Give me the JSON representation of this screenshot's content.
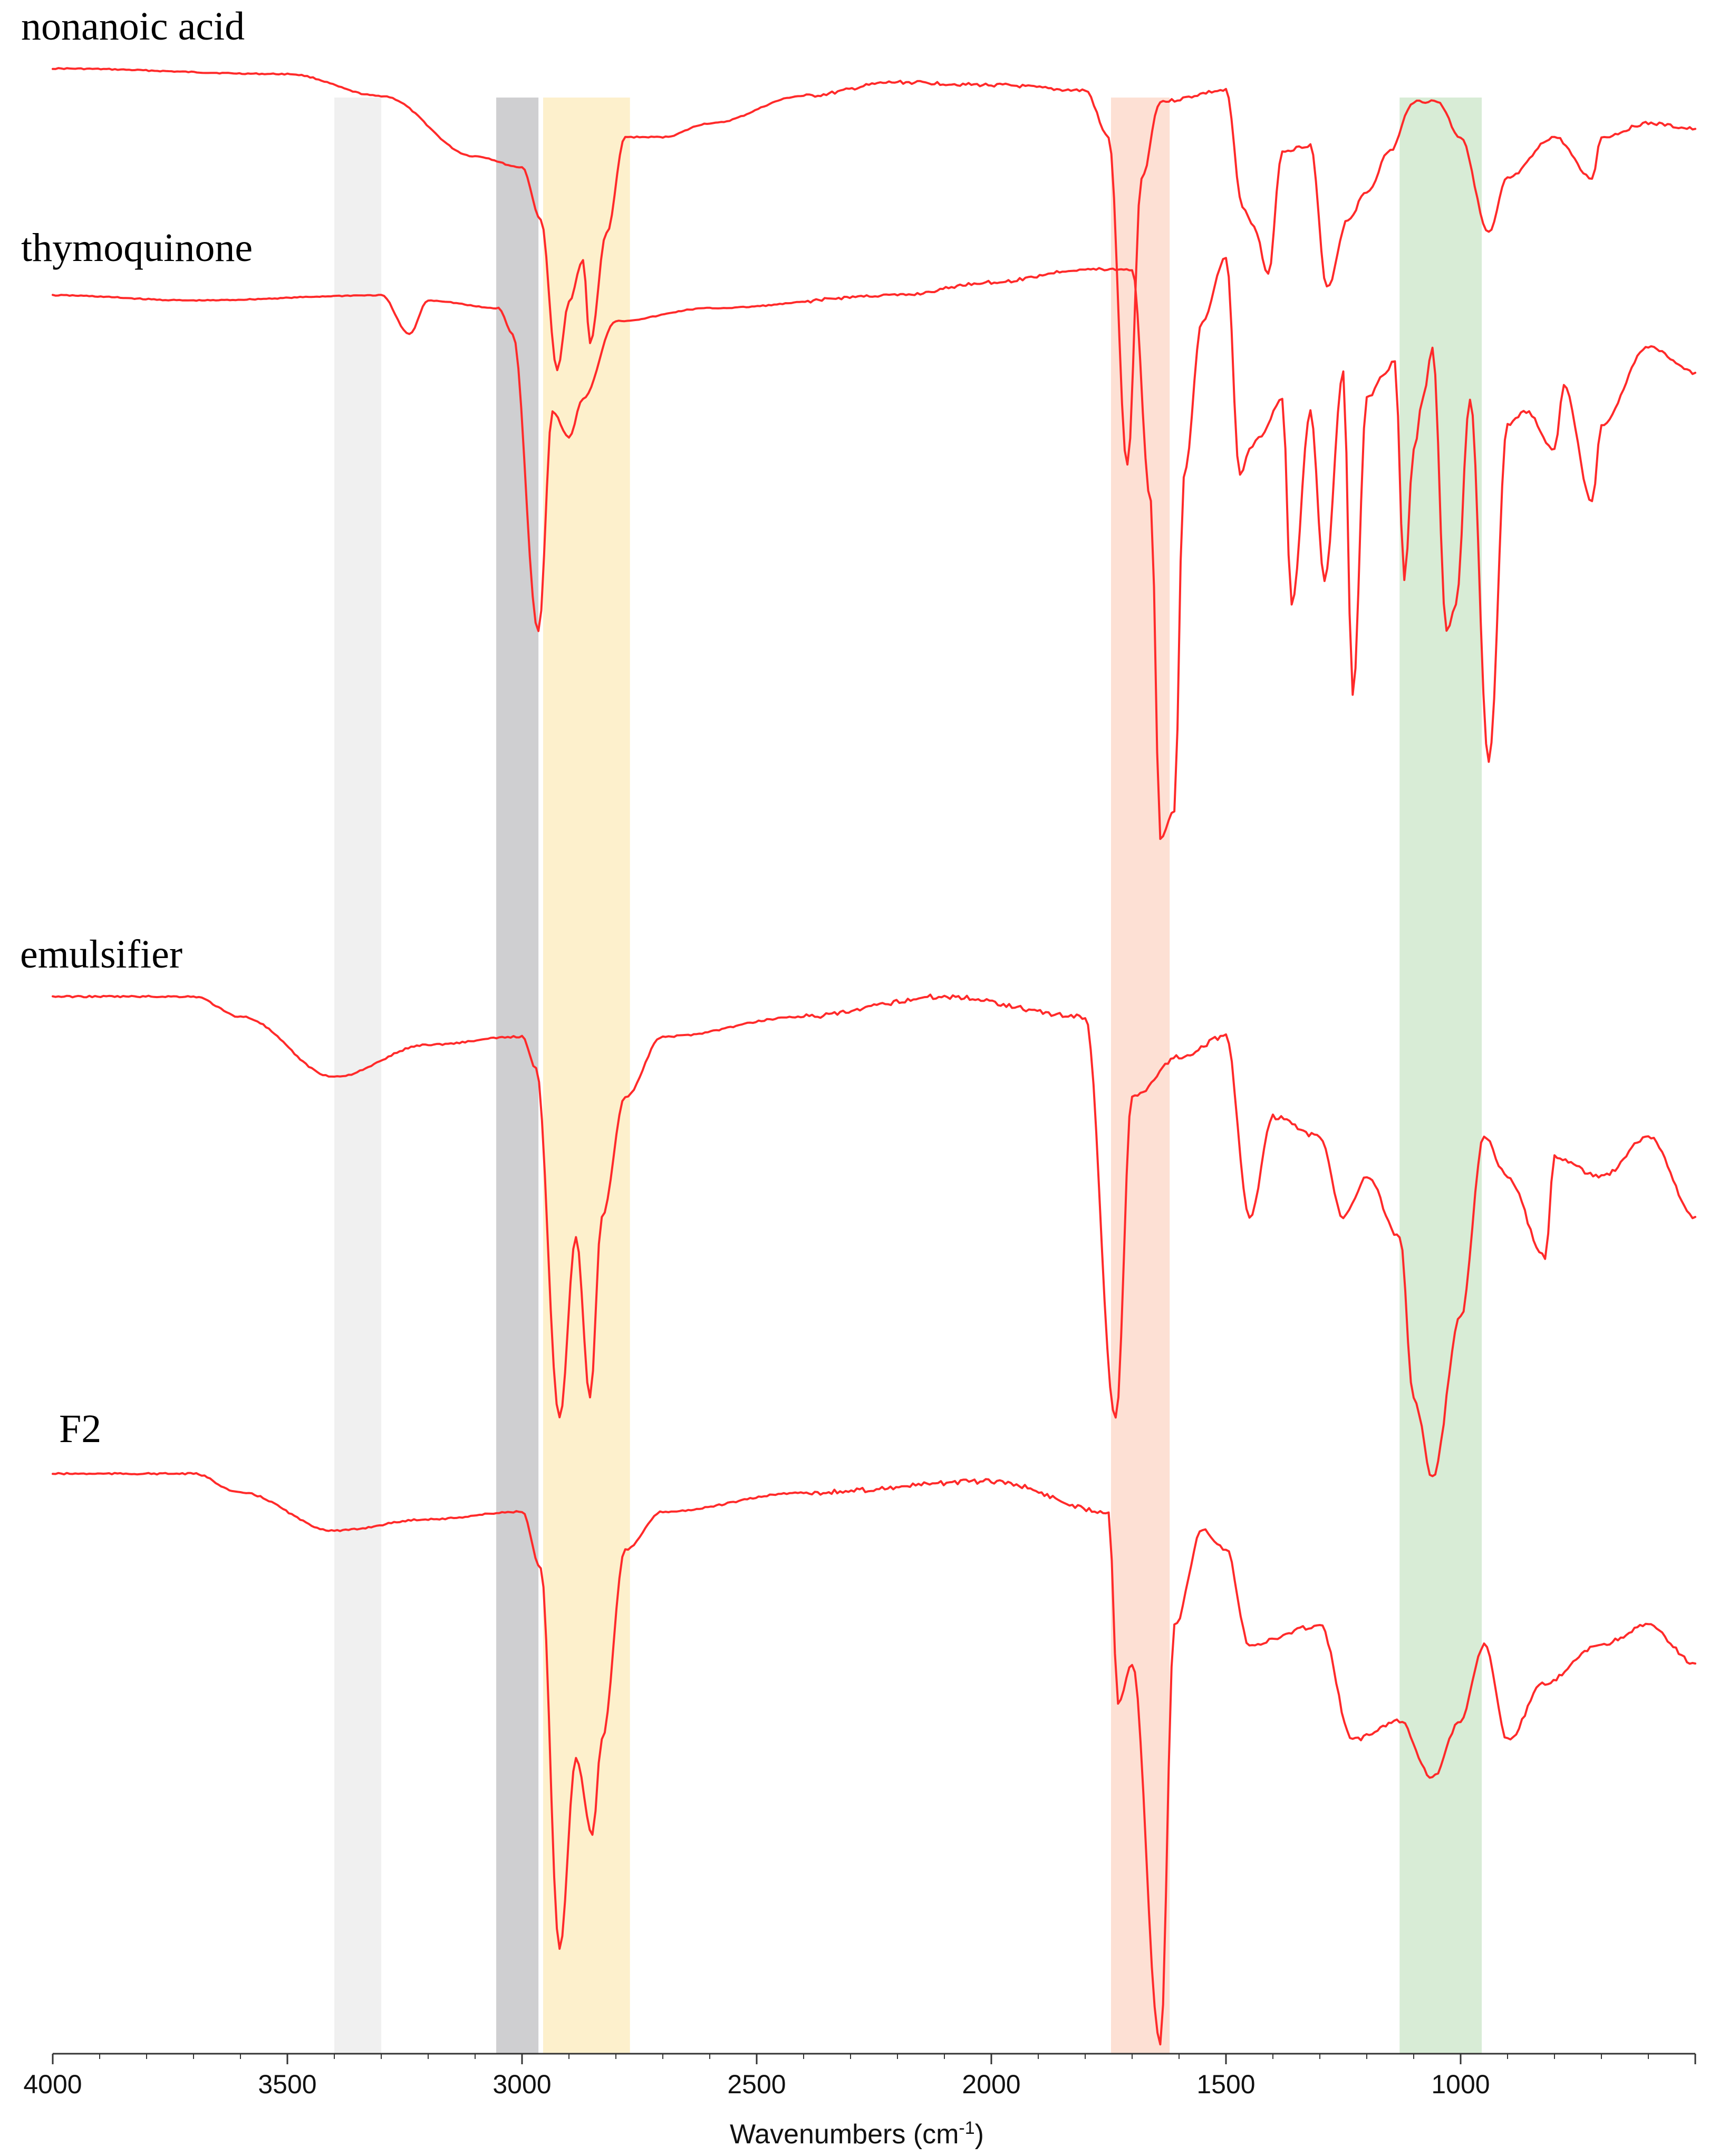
{
  "chart_data": {
    "type": "line",
    "xlabel": "Wavenumbers (cm-1)",
    "xlabel_base": "Wavenumbers (cm",
    "xlabel_sup": "-1",
    "xlabel_tail": ")",
    "xlim": [
      4000,
      500
    ],
    "x_reversed": true,
    "ticks": [
      4000,
      3500,
      3000,
      2500,
      2000,
      1500,
      1000
    ],
    "grid": false,
    "legend": "none",
    "line_color": "#ff2a2a",
    "bands": [
      {
        "from": 3400,
        "to": 3300,
        "color": "#f0f0f0"
      },
      {
        "from": 3055,
        "to": 2965,
        "color": "#cfcfd1"
      },
      {
        "from": 2955,
        "to": 2770,
        "color": "#fdf0cc"
      },
      {
        "from": 1745,
        "to": 1620,
        "color": "#fde0d4"
      },
      {
        "from": 1130,
        "to": 955,
        "color": "#d8ecd6"
      }
    ],
    "series": [
      {
        "name": "nonanoic acid",
        "offset": 0.0,
        "points": [
          [
            4000,
            0.0
          ],
          [
            3500,
            0.02
          ],
          [
            3300,
            0.1
          ],
          [
            3100,
            0.32
          ],
          [
            3000,
            0.36
          ],
          [
            2960,
            0.55
          ],
          [
            2925,
            1.1
          ],
          [
            2900,
            0.85
          ],
          [
            2870,
            0.7
          ],
          [
            2855,
            1.0
          ],
          [
            2820,
            0.6
          ],
          [
            2780,
            0.25
          ],
          [
            2700,
            0.25
          ],
          [
            2600,
            0.2
          ],
          [
            2400,
            0.1
          ],
          [
            2200,
            0.05
          ],
          [
            2000,
            0.06
          ],
          [
            1800,
            0.08
          ],
          [
            1750,
            0.25
          ],
          [
            1710,
            1.45
          ],
          [
            1680,
            0.4
          ],
          [
            1640,
            0.12
          ],
          [
            1500,
            0.08
          ],
          [
            1465,
            0.5
          ],
          [
            1440,
            0.58
          ],
          [
            1410,
            0.75
          ],
          [
            1380,
            0.3
          ],
          [
            1320,
            0.28
          ],
          [
            1285,
            0.8
          ],
          [
            1240,
            0.55
          ],
          [
            1200,
            0.45
          ],
          [
            1150,
            0.3
          ],
          [
            1100,
            0.12
          ],
          [
            1050,
            0.12
          ],
          [
            1000,
            0.25
          ],
          [
            940,
            0.6
          ],
          [
            900,
            0.4
          ],
          [
            800,
            0.25
          ],
          [
            720,
            0.4
          ],
          [
            700,
            0.25
          ],
          [
            600,
            0.2
          ],
          [
            500,
            0.22
          ]
        ]
      },
      {
        "name": "thymoquinone",
        "offset": 0.0,
        "points": [
          [
            4000,
            0.0
          ],
          [
            3700,
            0.02
          ],
          [
            3300,
            0.0
          ],
          [
            3240,
            0.15
          ],
          [
            3200,
            0.02
          ],
          [
            3050,
            0.05
          ],
          [
            3020,
            0.15
          ],
          [
            2965,
            1.3
          ],
          [
            2935,
            0.45
          ],
          [
            2900,
            0.55
          ],
          [
            2870,
            0.4
          ],
          [
            2800,
            0.1
          ],
          [
            2600,
            0.05
          ],
          [
            2200,
            0.0
          ],
          [
            2000,
            -0.05
          ],
          [
            1800,
            -0.1
          ],
          [
            1700,
            -0.1
          ],
          [
            1660,
            0.8
          ],
          [
            1640,
            2.1
          ],
          [
            1610,
            2.0
          ],
          [
            1590,
            0.7
          ],
          [
            1550,
            0.1
          ],
          [
            1500,
            -0.15
          ],
          [
            1470,
            0.7
          ],
          [
            1450,
            0.6
          ],
          [
            1430,
            0.55
          ],
          [
            1380,
            0.4
          ],
          [
            1360,
            1.2
          ],
          [
            1320,
            0.45
          ],
          [
            1290,
            1.1
          ],
          [
            1250,
            0.3
          ],
          [
            1230,
            1.55
          ],
          [
            1200,
            0.4
          ],
          [
            1160,
            0.3
          ],
          [
            1140,
            0.25
          ],
          [
            1120,
            1.1
          ],
          [
            1100,
            0.6
          ],
          [
            1080,
            0.4
          ],
          [
            1060,
            0.2
          ],
          [
            1030,
            1.3
          ],
          [
            1010,
            1.2
          ],
          [
            980,
            0.4
          ],
          [
            940,
            1.8
          ],
          [
            900,
            0.5
          ],
          [
            860,
            0.45
          ],
          [
            800,
            0.6
          ],
          [
            780,
            0.35
          ],
          [
            720,
            0.8
          ],
          [
            700,
            0.5
          ],
          [
            600,
            0.2
          ],
          [
            500,
            0.3
          ]
        ]
      },
      {
        "name": "emulsifier",
        "offset": 0.0,
        "points": [
          [
            4000,
            0.0
          ],
          [
            3700,
            0.0
          ],
          [
            3600,
            0.05
          ],
          [
            3400,
            0.2
          ],
          [
            3200,
            0.12
          ],
          [
            3000,
            0.1
          ],
          [
            2970,
            0.18
          ],
          [
            2920,
            1.05
          ],
          [
            2885,
            0.6
          ],
          [
            2855,
            1.0
          ],
          [
            2830,
            0.55
          ],
          [
            2780,
            0.25
          ],
          [
            2700,
            0.1
          ],
          [
            2400,
            0.05
          ],
          [
            2100,
            0.0
          ],
          [
            1800,
            0.05
          ],
          [
            1735,
            1.05
          ],
          [
            1700,
            0.25
          ],
          [
            1600,
            0.15
          ],
          [
            1500,
            0.1
          ],
          [
            1450,
            0.55
          ],
          [
            1400,
            0.3
          ],
          [
            1300,
            0.35
          ],
          [
            1250,
            0.55
          ],
          [
            1200,
            0.45
          ],
          [
            1130,
            0.6
          ],
          [
            1100,
            1.0
          ],
          [
            1060,
            1.2
          ],
          [
            1000,
            0.8
          ],
          [
            950,
            0.35
          ],
          [
            900,
            0.45
          ],
          [
            820,
            0.65
          ],
          [
            800,
            0.4
          ],
          [
            700,
            0.45
          ],
          [
            600,
            0.35
          ],
          [
            500,
            0.55
          ]
        ]
      },
      {
        "name": "F2",
        "offset": 0.0,
        "points": [
          [
            4000,
            0.0
          ],
          [
            3700,
            0.0
          ],
          [
            3600,
            0.05
          ],
          [
            3400,
            0.15
          ],
          [
            3200,
            0.12
          ],
          [
            3000,
            0.1
          ],
          [
            2960,
            0.25
          ],
          [
            2920,
            1.25
          ],
          [
            2885,
            0.75
          ],
          [
            2850,
            0.95
          ],
          [
            2830,
            0.7
          ],
          [
            2780,
            0.2
          ],
          [
            2700,
            0.1
          ],
          [
            2400,
            0.05
          ],
          [
            2000,
            0.02
          ],
          [
            1750,
            0.1
          ],
          [
            1730,
            0.6
          ],
          [
            1700,
            0.5
          ],
          [
            1640,
            1.5
          ],
          [
            1610,
            0.4
          ],
          [
            1550,
            0.15
          ],
          [
            1500,
            0.2
          ],
          [
            1450,
            0.45
          ],
          [
            1300,
            0.4
          ],
          [
            1230,
            0.7
          ],
          [
            1130,
            0.65
          ],
          [
            1060,
            0.8
          ],
          [
            1000,
            0.65
          ],
          [
            950,
            0.45
          ],
          [
            900,
            0.7
          ],
          [
            820,
            0.55
          ],
          [
            700,
            0.45
          ],
          [
            600,
            0.4
          ],
          [
            500,
            0.5
          ]
        ]
      }
    ]
  }
}
